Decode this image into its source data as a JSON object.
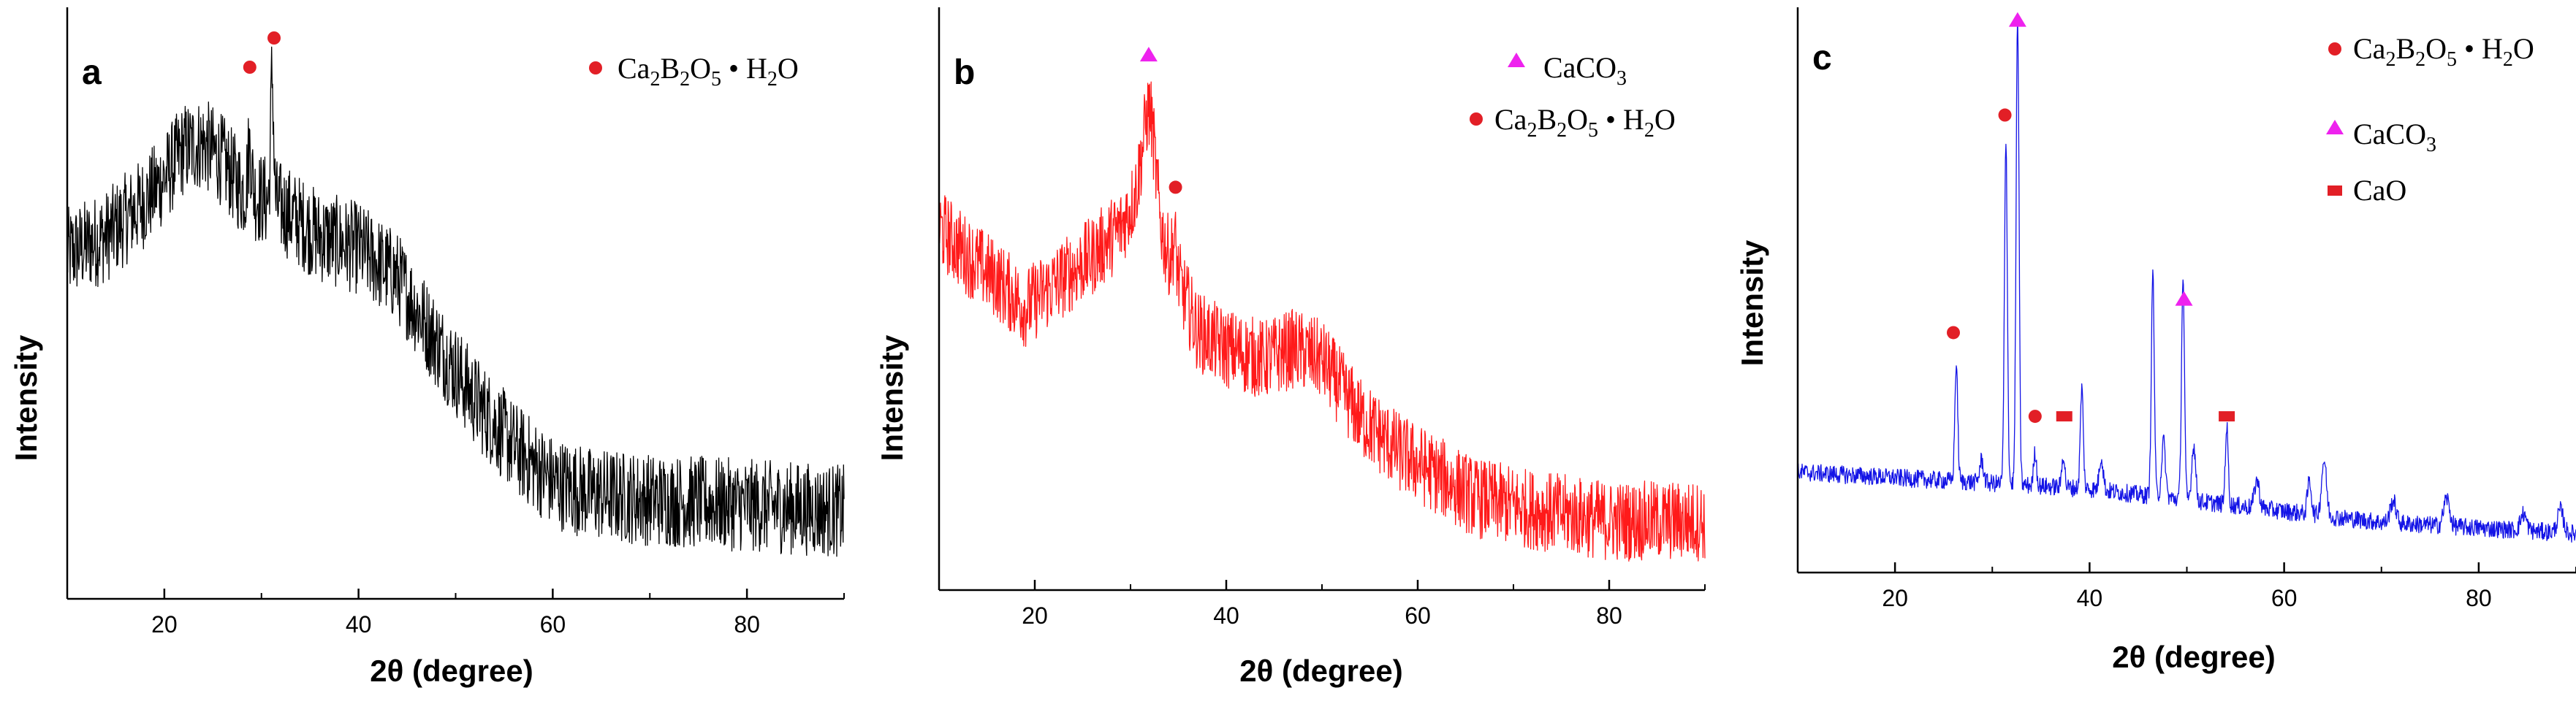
{
  "colors": {
    "panel_a": "#000000",
    "panel_b": "#ff1a1a",
    "panel_c": "#1414e6",
    "marker_circle": "#e21f26",
    "marker_triangle": "#ee22ee",
    "marker_square": "#e21f26",
    "axis": "#000000"
  },
  "chart_data": [
    {
      "type": "line",
      "panel_label": "a",
      "xlabel": "2θ (degree)",
      "ylabel": "Intensity",
      "xlim": [
        10,
        90
      ],
      "ylim": [
        0,
        100
      ],
      "xticks": [
        "20",
        "40",
        "60",
        "80"
      ],
      "xtick_values": [
        20,
        40,
        60,
        80
      ],
      "series": [
        {
          "name": "XRD pattern a",
          "color_key": "panel_a",
          "noise": 8,
          "profile": [
            [
              10,
              59
            ],
            [
              14,
              62
            ],
            [
              18,
              68
            ],
            [
              20,
              72
            ],
            [
              22,
              77
            ],
            [
              24,
              78
            ],
            [
              26,
              75
            ],
            [
              28,
              70
            ],
            [
              32,
              67
            ],
            [
              36,
              62
            ],
            [
              40,
              60
            ],
            [
              44,
              55
            ],
            [
              48,
              44
            ],
            [
              52,
              34
            ],
            [
              56,
              26
            ],
            [
              60,
              20
            ],
            [
              64,
              18
            ],
            [
              70,
              17
            ],
            [
              80,
              16
            ],
            [
              90,
              15
            ]
          ],
          "peaks": [
            [
              28.8,
              8,
              0.2
            ],
            [
              31.1,
              22,
              0.15
            ]
          ]
        }
      ],
      "legend": [
        {
          "marker": "circle",
          "color_key": "marker_circle",
          "label": "Ca2B2O5•H2O"
        }
      ],
      "peak_markers": [
        {
          "x": 28.8,
          "y": 91,
          "marker": "circle"
        },
        {
          "x": 31.3,
          "y": 96,
          "marker": "circle"
        }
      ]
    },
    {
      "type": "line",
      "panel_label": "b",
      "xlabel": "2θ (degree)",
      "ylabel": "Intensity",
      "xlim": [
        10,
        90
      ],
      "ylim": [
        0,
        100
      ],
      "xticks": [
        "20",
        "40",
        "60",
        "80"
      ],
      "xtick_values": [
        20,
        40,
        60,
        80
      ],
      "series": [
        {
          "name": "XRD pattern b",
          "color_key": "panel_b",
          "noise": 7,
          "profile": [
            [
              10,
              63
            ],
            [
              13,
              58
            ],
            [
              16,
              54
            ],
            [
              19,
              49
            ],
            [
              22,
              53
            ],
            [
              26,
              58
            ],
            [
              29,
              63
            ],
            [
              31,
              70
            ],
            [
              33,
              62
            ],
            [
              35,
              54
            ],
            [
              37,
              45
            ],
            [
              40,
              42
            ],
            [
              44,
              40
            ],
            [
              47,
              42
            ],
            [
              50,
              40
            ],
            [
              54,
              30
            ],
            [
              58,
              24
            ],
            [
              62,
              20
            ],
            [
              66,
              16
            ],
            [
              72,
              14
            ],
            [
              80,
              12
            ],
            [
              90,
              12
            ]
          ],
          "peaks": [
            [
              32.0,
              17,
              0.6
            ],
            [
              34.6,
              5,
              0.2
            ]
          ]
        }
      ],
      "legend": [
        {
          "marker": "triangle",
          "color_key": "marker_triangle",
          "label": "CaCO3"
        },
        {
          "marker": "circle",
          "color_key": "marker_circle",
          "label": "Ca2B2O5•H2O"
        }
      ],
      "peak_markers": [
        {
          "x": 31.9,
          "y": 93,
          "marker": "triangle"
        },
        {
          "x": 34.7,
          "y": 70,
          "marker": "circle"
        }
      ]
    },
    {
      "type": "line",
      "panel_label": "c",
      "xlabel": "2θ (degree)",
      "ylabel": "Intensity",
      "xlim": [
        10,
        90
      ],
      "ylim": [
        0,
        100
      ],
      "xticks": [
        "20",
        "40",
        "60",
        "80"
      ],
      "xtick_values": [
        20,
        40,
        60,
        80
      ],
      "series": [
        {
          "name": "XRD pattern c",
          "color_key": "panel_c",
          "noise": 1.6,
          "profile": [
            [
              10,
              18
            ],
            [
              20,
              17
            ],
            [
              30,
              16
            ],
            [
              40,
              15
            ],
            [
              50,
              13
            ],
            [
              60,
              11
            ],
            [
              70,
              9
            ],
            [
              80,
              8
            ],
            [
              90,
              7
            ]
          ],
          "peaks": [
            [
              26.3,
              21,
              0.15
            ],
            [
              28.9,
              4,
              0.2
            ],
            [
              31.4,
              61,
              0.15
            ],
            [
              32.6,
              84,
              0.15
            ],
            [
              34.4,
              6,
              0.15
            ],
            [
              37.3,
              6,
              0.15
            ],
            [
              39.2,
              18,
              0.15
            ],
            [
              41.2,
              6,
              0.2
            ],
            [
              46.5,
              40,
              0.15
            ],
            [
              47.6,
              10,
              0.2
            ],
            [
              49.6,
              40,
              0.15
            ],
            [
              50.7,
              10,
              0.2
            ],
            [
              54.1,
              14,
              0.15
            ],
            [
              57.2,
              5,
              0.25
            ],
            [
              62.6,
              6,
              0.2
            ],
            [
              64.1,
              10,
              0.25
            ],
            [
              71.2,
              4,
              0.3
            ],
            [
              76.7,
              5,
              0.3
            ],
            [
              84.6,
              3,
              0.3
            ],
            [
              88.4,
              4,
              0.3
            ]
          ]
        }
      ],
      "legend": [
        {
          "marker": "circle",
          "color_key": "marker_circle",
          "label": "Ca2B2O5•H2O"
        },
        {
          "marker": "triangle",
          "color_key": "marker_triangle",
          "label": "CaCO3"
        },
        {
          "marker": "square",
          "color_key": "marker_square",
          "label": "CaO"
        }
      ],
      "peak_markers": [
        {
          "x": 26.0,
          "y": 43,
          "marker": "circle"
        },
        {
          "x": 31.3,
          "y": 82,
          "marker": "circle"
        },
        {
          "x": 32.6,
          "y": 99,
          "marker": "triangle"
        },
        {
          "x": 34.4,
          "y": 28,
          "marker": "circle"
        },
        {
          "x": 37.4,
          "y": 28,
          "marker": "square"
        },
        {
          "x": 49.7,
          "y": 49,
          "marker": "triangle"
        },
        {
          "x": 54.1,
          "y": 28,
          "marker": "square"
        }
      ]
    }
  ]
}
